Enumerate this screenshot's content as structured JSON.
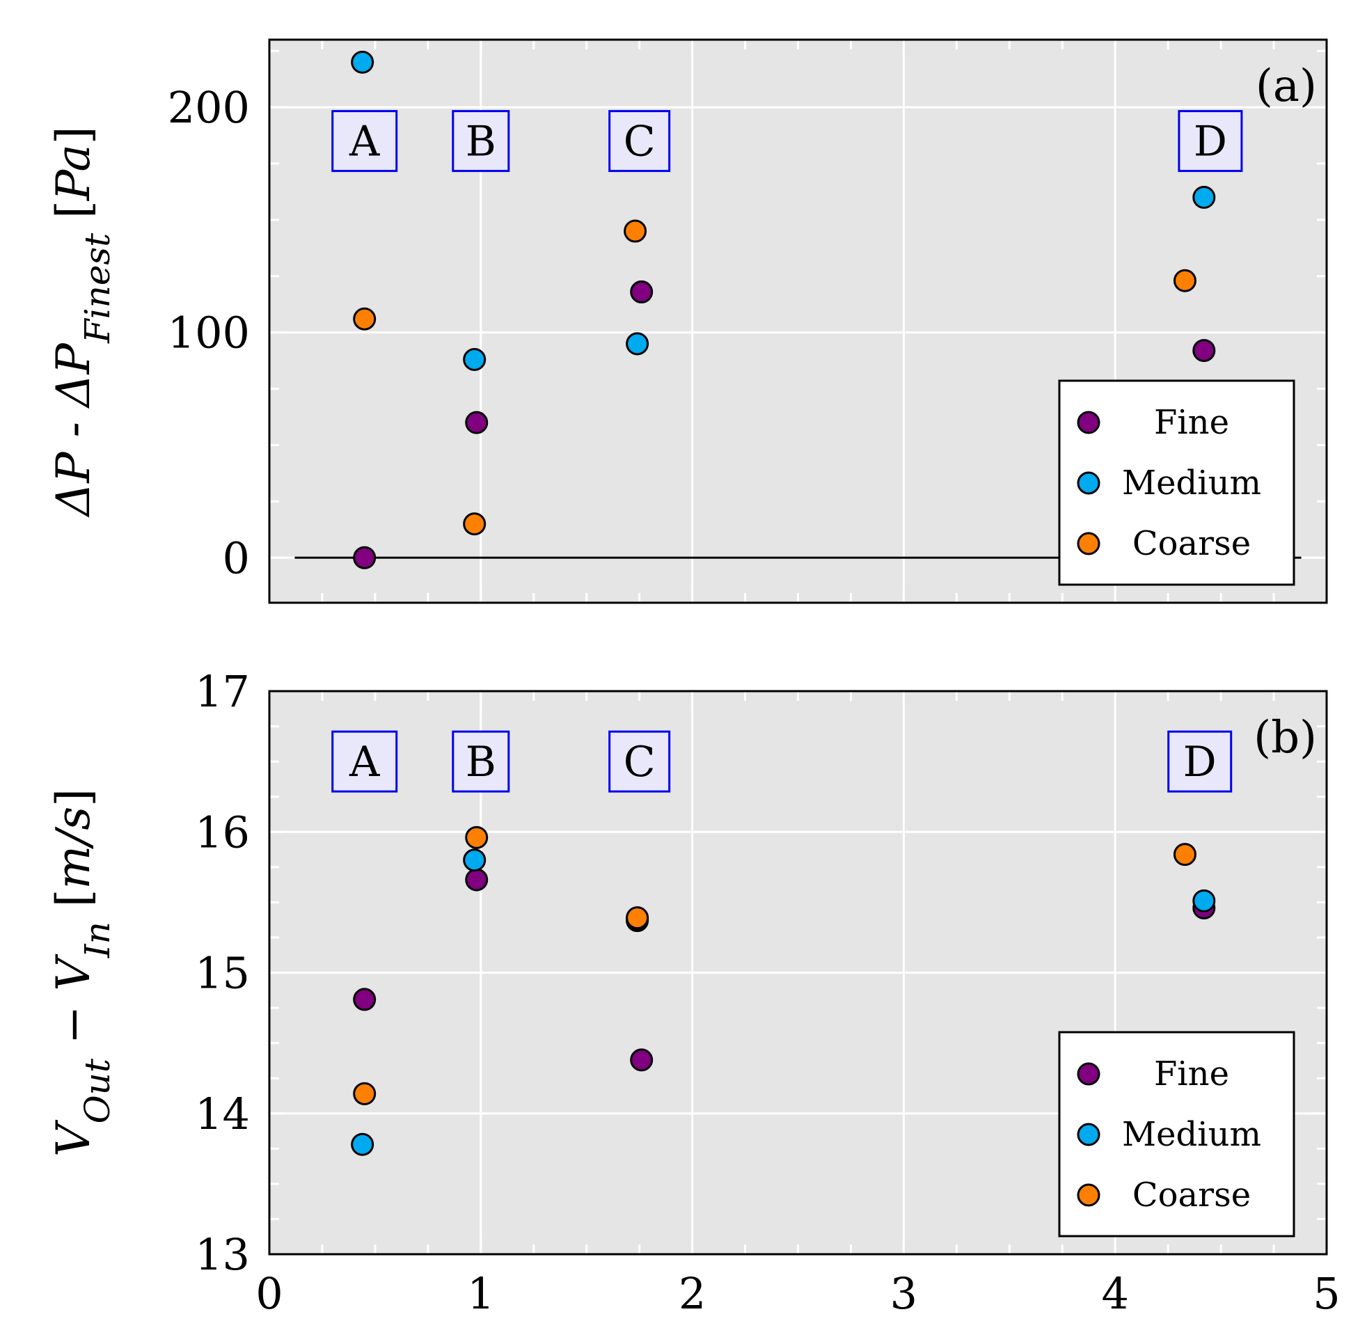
{
  "chart_data": [
    {
      "type": "scatter",
      "panel_tag": "(a)",
      "ylabel": {
        "base": "ΔP - ΔP",
        "subscript": "Finest",
        "unit_open": "[",
        "unit": "Pa",
        "unit_close": "]"
      },
      "xlim": [
        0,
        5
      ],
      "ylim": [
        -20,
        230
      ],
      "yticks": [
        0,
        100,
        200
      ],
      "y_minor_step": 25,
      "x_minor_step": 0.25,
      "show_x_tick_labels": false,
      "grid": true,
      "zero_line": true,
      "regions": [
        {
          "label": "A",
          "x": 0.45,
          "y": 185
        },
        {
          "label": "B",
          "x": 1.0,
          "y": 185
        },
        {
          "label": "C",
          "x": 1.75,
          "y": 185
        },
        {
          "label": "D",
          "x": 4.45,
          "y": 185
        }
      ],
      "legend_placement": "bottom-right",
      "series": [
        {
          "name": "Fine",
          "color": "#800080",
          "points": [
            [
              0.45,
              0
            ],
            [
              0.98,
              60
            ],
            [
              1.76,
              118
            ],
            [
              4.42,
              92
            ]
          ]
        },
        {
          "name": "Medium",
          "color": "#00aaee",
          "points": [
            [
              0.44,
              220
            ],
            [
              0.97,
              88
            ],
            [
              1.74,
              95
            ],
            [
              4.42,
              160
            ]
          ]
        },
        {
          "name": "Coarse",
          "color": "#ff8000",
          "points": [
            [
              0.45,
              106
            ],
            [
              0.97,
              15
            ],
            [
              1.73,
              145
            ],
            [
              4.33,
              123
            ]
          ]
        }
      ]
    },
    {
      "type": "scatter",
      "panel_tag": "(b)",
      "ylabel": {
        "v1": "V",
        "s1": "Out",
        "minus": " − ",
        "v2": "V",
        "s2": "In",
        "unit_open": " [",
        "unit": "m/s",
        "unit_close": "]"
      },
      "xlim": [
        0,
        5
      ],
      "ylim": [
        13,
        17
      ],
      "xticks": [
        0,
        1,
        2,
        3,
        4,
        5
      ],
      "yticks": [
        13,
        14,
        15,
        16,
        17
      ],
      "y_minor_step": 0.25,
      "x_minor_step": 0.25,
      "show_x_tick_labels": true,
      "grid": true,
      "zero_line": false,
      "regions": [
        {
          "label": "A",
          "x": 0.45,
          "y": 16.5
        },
        {
          "label": "B",
          "x": 1.0,
          "y": 16.5
        },
        {
          "label": "C",
          "x": 1.75,
          "y": 16.5
        },
        {
          "label": "D",
          "x": 4.4,
          "y": 16.5
        }
      ],
      "legend_placement": "bottom-right",
      "series": [
        {
          "name": "Fine",
          "color": "#800080",
          "points": [
            [
              0.45,
              14.81
            ],
            [
              0.98,
              15.66
            ],
            [
              1.76,
              14.38
            ],
            [
              1.74,
              15.37
            ],
            [
              4.42,
              15.46
            ]
          ]
        },
        {
          "name": "Medium",
          "color": "#00aaee",
          "points": [
            [
              0.44,
              13.78
            ],
            [
              0.97,
              15.8
            ],
            [
              1.74,
              15.38
            ],
            [
              4.42,
              15.51
            ]
          ]
        },
        {
          "name": "Coarse",
          "color": "#ff8000",
          "points": [
            [
              0.45,
              14.14
            ],
            [
              0.98,
              15.96
            ],
            [
              1.74,
              15.39
            ],
            [
              4.33,
              15.84
            ]
          ]
        }
      ]
    }
  ]
}
